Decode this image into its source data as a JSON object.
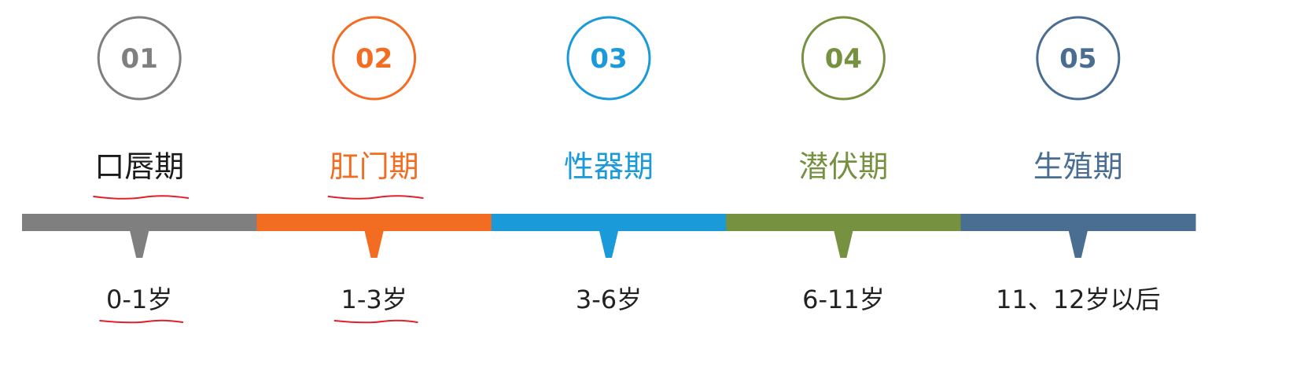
{
  "stages": [
    {
      "number": "01",
      "name": "口唇期",
      "age": "0-1岁",
      "color": "#7f7f7f",
      "underline_name": true,
      "underline_age": true
    },
    {
      "number": "02",
      "name": "肛门期",
      "age": "1-3岁",
      "color": "#f26c21",
      "underline_name": true,
      "underline_age": true
    },
    {
      "number": "03",
      "name": "性器期",
      "age": "3-6岁",
      "color": "#1a9ad9",
      "underline_name": false,
      "underline_age": false
    },
    {
      "number": "04",
      "name": "潜伏期",
      "age": "6-11岁",
      "color": "#76913f",
      "underline_name": false,
      "underline_age": false
    },
    {
      "number": "05",
      "name": "生殖期",
      "age": "11、12岁以后",
      "color": "#4a6d92",
      "underline_name": false,
      "underline_age": false
    }
  ],
  "annotation_color": "#e0202a"
}
